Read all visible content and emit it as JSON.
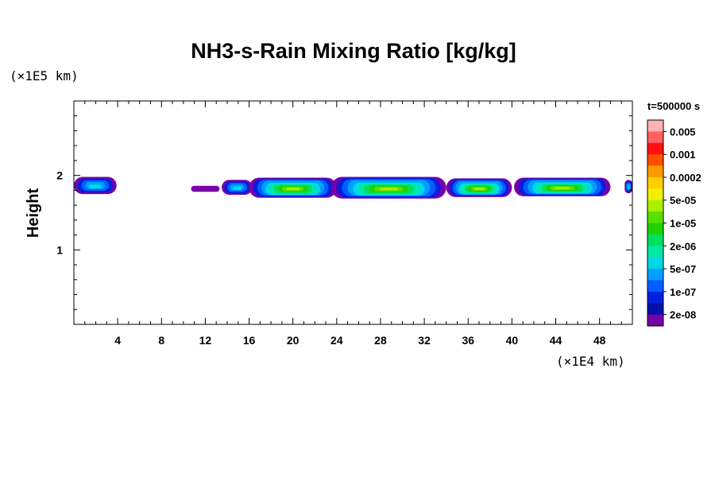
{
  "chart_data": {
    "type": "heatmap",
    "title": "NH3-s-Rain Mixing Ratio [kg/kg]",
    "ylabel": "Height",
    "x_unit_label": "(×1E4 km)",
    "y_unit_label": "(×1E5 km)",
    "xlim": [
      0,
      51
    ],
    "ylim": [
      0,
      3
    ],
    "x_ticks": [
      4,
      8,
      12,
      16,
      20,
      24,
      28,
      32,
      36,
      40,
      44,
      48
    ],
    "y_ticks": [
      1,
      2
    ],
    "time_label": "t=500000 s",
    "colorbar": {
      "labels": [
        "0.005",
        "0.001",
        "0.0002",
        "5e-05",
        "1e-05",
        "2e-06",
        "5e-07",
        "1e-07",
        "2e-08"
      ],
      "colors": [
        "#ffb0b0",
        "#ff6060",
        "#ff1010",
        "#ff5000",
        "#ff9900",
        "#ffd000",
        "#f0f000",
        "#a8f000",
        "#58e000",
        "#20d000",
        "#00e060",
        "#00e8a8",
        "#00d8e8",
        "#00a0ff",
        "#0060ff",
        "#0020e0",
        "#0010a8",
        "#7800a8"
      ]
    },
    "cloud_cells": [
      {
        "x0": 0.0,
        "x1": 3.9,
        "y_bottom": 1.75,
        "y_top": 1.98,
        "peak": "5e-07"
      },
      {
        "x0": 10.7,
        "x1": 13.3,
        "y_bottom": 1.78,
        "y_top": 1.86,
        "peak": "2e-08"
      },
      {
        "x0": 13.5,
        "x1": 16.3,
        "y_bottom": 1.74,
        "y_top": 1.94,
        "peak": "5e-07"
      },
      {
        "x0": 16.0,
        "x1": 24.0,
        "y_bottom": 1.7,
        "y_top": 1.97,
        "peak": "1e-05"
      },
      {
        "x0": 23.5,
        "x1": 34.0,
        "y_bottom": 1.69,
        "y_top": 1.98,
        "peak": "1e-05"
      },
      {
        "x0": 34.0,
        "x1": 40.0,
        "y_bottom": 1.71,
        "y_top": 1.96,
        "peak": "1e-05"
      },
      {
        "x0": 40.2,
        "x1": 49.0,
        "y_bottom": 1.72,
        "y_top": 1.97,
        "peak": "1e-05"
      },
      {
        "x0": 50.3,
        "x1": 51.0,
        "y_bottom": 1.76,
        "y_top": 1.94,
        "peak": "5e-07"
      }
    ]
  }
}
